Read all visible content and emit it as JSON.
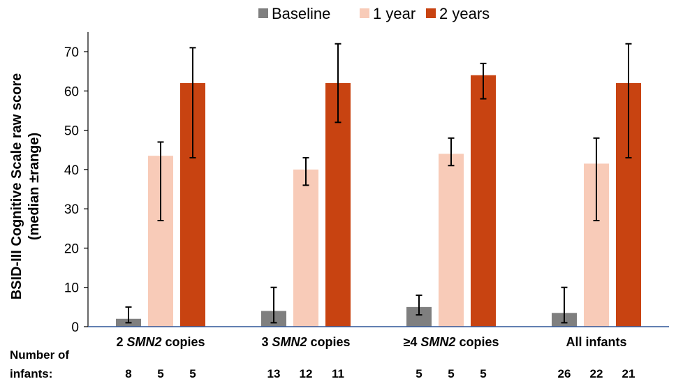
{
  "chart_data": {
    "type": "bar",
    "ylabel_line1": "BSID-III Cognitive Scale raw score",
    "ylabel_line2": "(median ±range)",
    "ylim": [
      0,
      75
    ],
    "yticks": [
      0,
      10,
      20,
      30,
      40,
      50,
      60,
      70
    ],
    "legend_placement": "top-center",
    "categories": [
      {
        "pre": "2 ",
        "em": "SMN2",
        "post": " copies"
      },
      {
        "pre": "3 ",
        "em": "SMN2",
        "post": " copies"
      },
      {
        "pre": "≥4 ",
        "em": "SMN2",
        "post": " copies"
      },
      {
        "pre": "All infants",
        "em": "",
        "post": ""
      }
    ],
    "series": [
      {
        "name": "Baseline",
        "color": "#7f7f7f",
        "values": [
          2,
          4,
          5,
          3.5
        ],
        "err_low": [
          1,
          1,
          3,
          1
        ],
        "err_high": [
          5,
          10,
          8,
          10
        ]
      },
      {
        "name": "1 year",
        "color": "#f8cbb8",
        "values": [
          43.5,
          40,
          44,
          41.5
        ],
        "err_low": [
          27,
          36,
          41,
          27
        ],
        "err_high": [
          47,
          43,
          48,
          48
        ]
      },
      {
        "name": "2 years",
        "color": "#c84311",
        "values": [
          62,
          62,
          64,
          62
        ],
        "err_low": [
          43,
          52,
          58,
          43
        ],
        "err_high": [
          71,
          72,
          67,
          72
        ]
      }
    ],
    "n_label_line1": "Number of",
    "n_label_line2": "infants:",
    "n_counts": [
      [
        8,
        5,
        5
      ],
      [
        13,
        12,
        11
      ],
      [
        5,
        5,
        5
      ],
      [
        26,
        22,
        21
      ]
    ]
  }
}
